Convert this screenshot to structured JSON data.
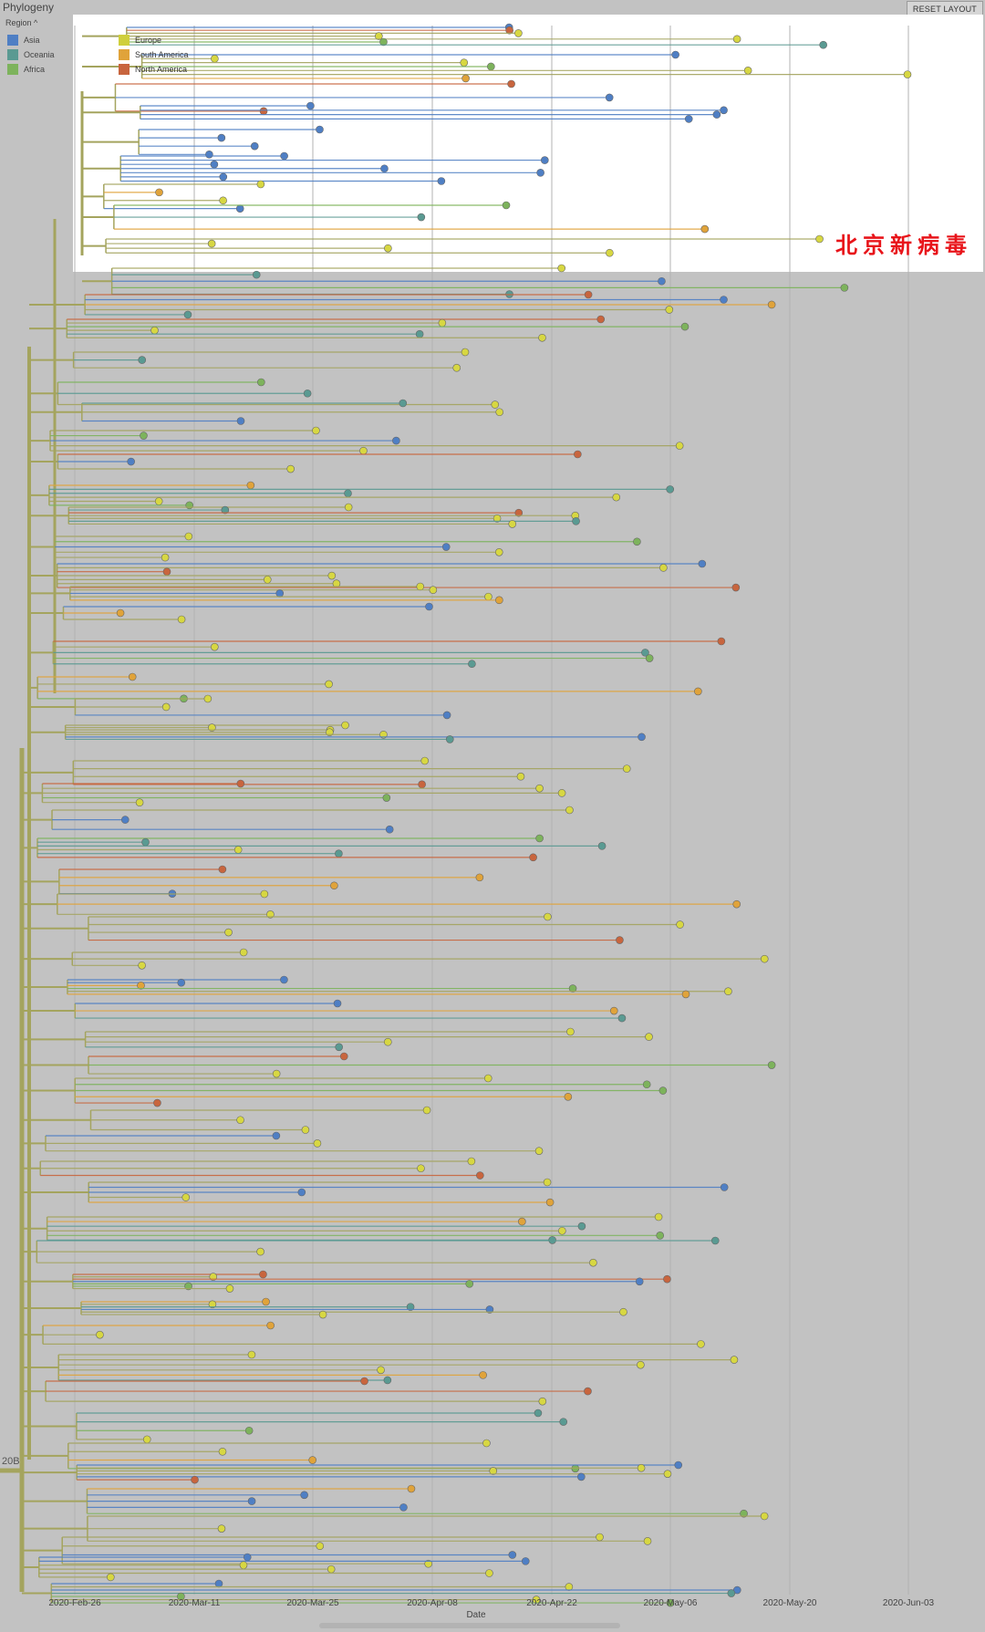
{
  "panel_title": "Phylogeny",
  "reset_label": "RESET LAYOUT",
  "region_label": "Region",
  "region_arrow": "^",
  "legend_left": [
    {
      "label": "Asia",
      "color": "#4f7fc4"
    },
    {
      "label": "Oceania",
      "color": "#5a9a92"
    },
    {
      "label": "Africa",
      "color": "#7db35c"
    }
  ],
  "legend_inset": [
    {
      "label": "Europe",
      "color": "#cfcf3c"
    },
    {
      "label": "South America",
      "color": "#e0a33a"
    },
    {
      "label": "North America",
      "color": "#c8653e"
    }
  ],
  "clade_label": "20B",
  "annotation": "北京新病毒",
  "colors": {
    "branch": "#a4a45e",
    "europe_tip": "#d7d742",
    "asia": "#4f7fc4",
    "oceania": "#5a9a92",
    "africa": "#7db35c",
    "south_america": "#e0a33a",
    "north_america": "#c8653e",
    "highlight_bg": "#ffffff",
    "background": "#c2c2c2"
  },
  "axis": {
    "title": "Date",
    "ticks": [
      "2020-Feb-26",
      "2020-Mar-11",
      "2020-Mar-25",
      "2020-Apr-08",
      "2020-Apr-22",
      "2020-May-06",
      "2020-May-20",
      "2020-Jun-03"
    ]
  }
}
